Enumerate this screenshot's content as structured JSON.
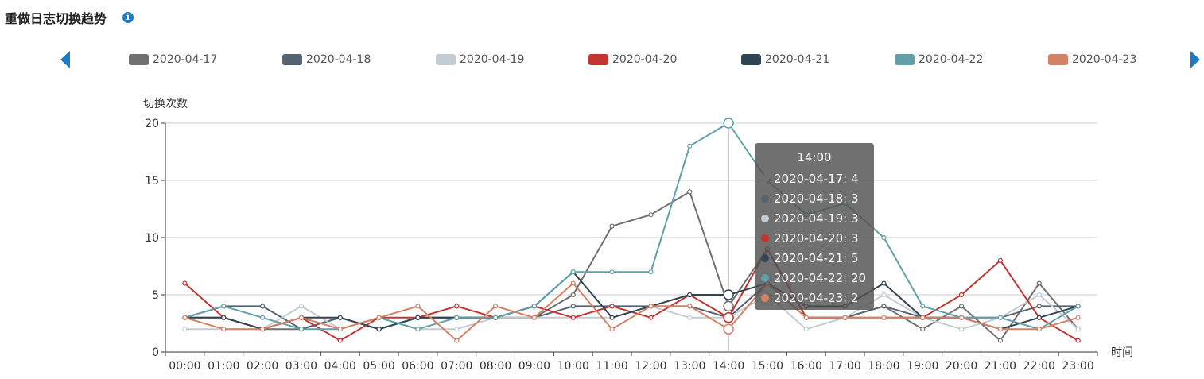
{
  "header": {
    "title": "重做日志切换趋势",
    "info_icon": "info-icon"
  },
  "legend": {
    "prev_icon": "chevron-left-icon",
    "next_icon": "chevron-right-icon"
  },
  "tooltip": {
    "title": "14:00",
    "rows": [
      {
        "label": "2020-04-17: 4",
        "color": "#707070"
      },
      {
        "label": "2020-04-18: 3",
        "color": "#546570"
      },
      {
        "label": "2020-04-19: 3",
        "color": "#c4ccd3"
      },
      {
        "label": "2020-04-20: 3",
        "color": "#c23531"
      },
      {
        "label": "2020-04-21: 5",
        "color": "#2f4554"
      },
      {
        "label": "2020-04-22: 20",
        "color": "#61a0a8"
      },
      {
        "label": "2020-04-23: 2",
        "color": "#d48265"
      }
    ]
  },
  "chart_data": {
    "type": "line",
    "title": "重做日志切换趋势",
    "ylabel": "切换次数",
    "xlabel": "时间",
    "ylim": [
      0,
      20
    ],
    "yticks": [
      0,
      5,
      10,
      15,
      20
    ],
    "grid": true,
    "legend_position": "top",
    "highlighted_category": "14:00",
    "categories": [
      "00:00",
      "01:00",
      "02:00",
      "03:00",
      "04:00",
      "05:00",
      "06:00",
      "07:00",
      "08:00",
      "09:00",
      "10:00",
      "11:00",
      "12:00",
      "13:00",
      "14:00",
      "15:00",
      "16:00",
      "17:00",
      "18:00",
      "19:00",
      "20:00",
      "21:00",
      "22:00",
      "23:00"
    ],
    "series": [
      {
        "name": "2020-04-17",
        "color": "#707070",
        "values": [
          3,
          3,
          2,
          2,
          3,
          2,
          3,
          3,
          3,
          3,
          5,
          11,
          12,
          14,
          4,
          9,
          3,
          3,
          4,
          2,
          4,
          1,
          6,
          2
        ]
      },
      {
        "name": "2020-04-18",
        "color": "#546570",
        "values": [
          3,
          4,
          4,
          2,
          3,
          2,
          3,
          3,
          3,
          3,
          4,
          4,
          4,
          4,
          3,
          6,
          3,
          3,
          4,
          3,
          3,
          3,
          4,
          4
        ]
      },
      {
        "name": "2020-04-19",
        "color": "#c4ccd3",
        "values": [
          2,
          2,
          2,
          4,
          2,
          3,
          2,
          2,
          3,
          3,
          3,
          3,
          4,
          3,
          3,
          5,
          2,
          3,
          5,
          3,
          2,
          3,
          5,
          2
        ]
      },
      {
        "name": "2020-04-20",
        "color": "#c23531",
        "values": [
          6,
          3,
          2,
          3,
          1,
          3,
          3,
          4,
          3,
          4,
          3,
          4,
          3,
          5,
          3,
          9,
          3,
          3,
          3,
          3,
          5,
          8,
          3,
          1
        ]
      },
      {
        "name": "2020-04-21",
        "color": "#2f4554",
        "values": [
          3,
          3,
          2,
          3,
          3,
          2,
          3,
          3,
          3,
          4,
          7,
          3,
          4,
          5,
          5,
          6,
          4,
          4,
          6,
          3,
          3,
          2,
          3,
          4
        ]
      },
      {
        "name": "2020-04-22",
        "color": "#61a0a8",
        "values": [
          3,
          4,
          3,
          2,
          2,
          3,
          2,
          3,
          3,
          4,
          7,
          7,
          7,
          18,
          20,
          15,
          12,
          13,
          10,
          4,
          3,
          3,
          2,
          4
        ]
      },
      {
        "name": "2020-04-23",
        "color": "#d48265",
        "values": [
          3,
          2,
          2,
          3,
          2,
          3,
          4,
          1,
          4,
          3,
          6,
          2,
          4,
          4,
          2,
          6,
          3,
          3,
          3,
          3,
          3,
          2,
          2,
          3
        ]
      }
    ]
  }
}
